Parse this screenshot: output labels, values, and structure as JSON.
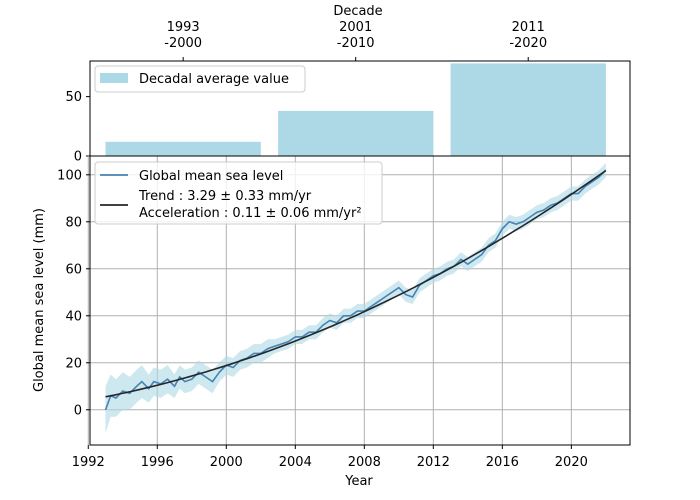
{
  "chart_data": [
    {
      "type": "bar",
      "title": "",
      "xlabel": "Decade",
      "ylabel": "",
      "categories": [
        "1993\n-2000",
        "2001\n-2010",
        "2011\n-2020"
      ],
      "bar_x_ranges": [
        [
          1993,
          2002
        ],
        [
          2003,
          2012
        ],
        [
          2013,
          2022
        ]
      ],
      "values": [
        12,
        38,
        78
      ],
      "ylim": [
        0,
        80
      ],
      "yticks": [
        0,
        50
      ],
      "legend": {
        "label": "Decadal average value",
        "placement": "upper-left"
      },
      "colors": {
        "bar": "#add8e6"
      },
      "grid": false
    },
    {
      "type": "line",
      "title": "",
      "xlabel": "Year",
      "ylabel": "Global mean sea level (mm)",
      "xlim": [
        1992.1,
        2023.4
      ],
      "ylim": [
        -15,
        108
      ],
      "xticks": [
        1992,
        1996,
        2000,
        2004,
        2008,
        2012,
        2016,
        2020
      ],
      "yticks": [
        0,
        20,
        40,
        60,
        80,
        100
      ],
      "grid": true,
      "legend": {
        "placement": "upper-left"
      },
      "series": [
        {
          "name": "Global mean sea level",
          "color": "#4682b4",
          "band_color": "#add8e6",
          "x": [
            1993.0,
            1993.3,
            1993.6,
            1994.0,
            1994.4,
            1994.8,
            1995.1,
            1995.5,
            1995.8,
            1996.2,
            1996.6,
            1997.0,
            1997.3,
            1997.6,
            1998.0,
            1998.4,
            1998.8,
            1999.2,
            1999.6,
            2000.0,
            2000.4,
            2000.8,
            2001.2,
            2001.6,
            2002.0,
            2002.4,
            2002.8,
            2003.2,
            2003.6,
            2004.0,
            2004.4,
            2004.8,
            2005.2,
            2005.6,
            2006.0,
            2006.4,
            2006.8,
            2007.2,
            2007.6,
            2008.0,
            2008.4,
            2008.8,
            2009.2,
            2009.6,
            2010.0,
            2010.4,
            2010.8,
            2011.2,
            2011.6,
            2012.0,
            2012.4,
            2012.8,
            2013.2,
            2013.6,
            2014.0,
            2014.4,
            2014.8,
            2015.2,
            2015.6,
            2016.0,
            2016.4,
            2016.8,
            2017.2,
            2017.6,
            2018.0,
            2018.4,
            2018.8,
            2019.2,
            2019.6,
            2020.0,
            2020.4,
            2020.8,
            2021.2,
            2021.6,
            2022.0
          ],
          "y": [
            0,
            6,
            5,
            8,
            7,
            10,
            12,
            9,
            12,
            11,
            13,
            10,
            14,
            12,
            13,
            16,
            14,
            12,
            16,
            19,
            18,
            21,
            22,
            24,
            24,
            26,
            27,
            28,
            29,
            31,
            31,
            33,
            33,
            36,
            38,
            37,
            40,
            40,
            42,
            42,
            44,
            46,
            48,
            50,
            52,
            49,
            48,
            53,
            55,
            57,
            58,
            60,
            61,
            64,
            62,
            64,
            66,
            70,
            72,
            77,
            80,
            79,
            80,
            82,
            84,
            85,
            87,
            88,
            90,
            92,
            92,
            95,
            97,
            99,
            102
          ],
          "band_halfwidth": [
            10,
            9,
            8,
            8,
            7,
            7,
            7,
            6,
            6,
            6,
            6,
            5,
            5,
            5,
            5,
            5,
            5,
            5,
            4,
            4,
            4,
            4,
            4,
            4,
            4,
            4,
            3,
            3,
            3,
            3,
            3,
            3,
            3,
            3,
            3,
            3,
            3,
            3,
            3,
            3,
            3,
            3,
            3,
            3,
            3,
            3,
            3,
            3,
            3,
            3,
            3,
            3,
            3,
            3,
            3,
            3,
            3,
            3,
            3,
            3,
            3,
            3,
            3,
            3,
            3,
            3,
            3,
            3,
            3,
            3,
            3,
            3,
            3,
            3,
            3
          ]
        },
        {
          "name": "Trend : 3.29 ± 0.33 mm/yr",
          "name_line2": "Acceleration : 0.11 ± 0.06 mm/yr²",
          "color": "#262626",
          "fit": {
            "t0": 1993.0,
            "intercept": 5.5,
            "slope": 1.45,
            "quad": 0.0645
          },
          "x_range": [
            1993.0,
            2022.0
          ]
        }
      ]
    }
  ]
}
